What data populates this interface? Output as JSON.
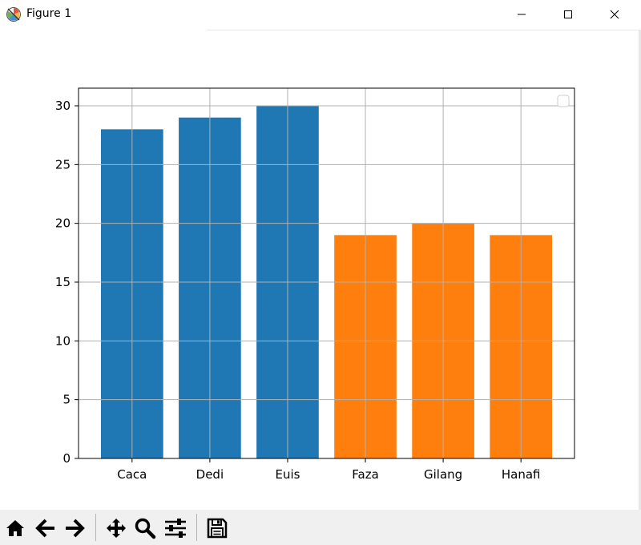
{
  "window": {
    "title": "Figure 1",
    "app_icon": "matplotlib-icon",
    "controls": [
      "minimize-icon",
      "maximize-icon",
      "close-icon"
    ]
  },
  "toolbar": {
    "buttons": [
      "home-icon",
      "back-arrow-icon",
      "forward-arrow-icon",
      "pan-icon",
      "zoom-icon",
      "configure-subplots-icon",
      "save-icon"
    ]
  },
  "chart_data": {
    "type": "bar",
    "categories": [
      "Caca",
      "Dedi",
      "Euis",
      "Faza",
      "Gilang",
      "Hanafi"
    ],
    "series": [
      {
        "values": [
          28,
          29,
          30,
          null,
          null,
          null
        ],
        "color": "#1f77b4"
      },
      {
        "values": [
          null,
          null,
          null,
          19,
          20,
          19
        ],
        "color": "#ff7f0e"
      }
    ],
    "ylim": [
      0,
      31.5
    ],
    "yticks": [
      0,
      5,
      10,
      15,
      20,
      25,
      30
    ],
    "grid": true,
    "legend": "top-right (empty)"
  }
}
